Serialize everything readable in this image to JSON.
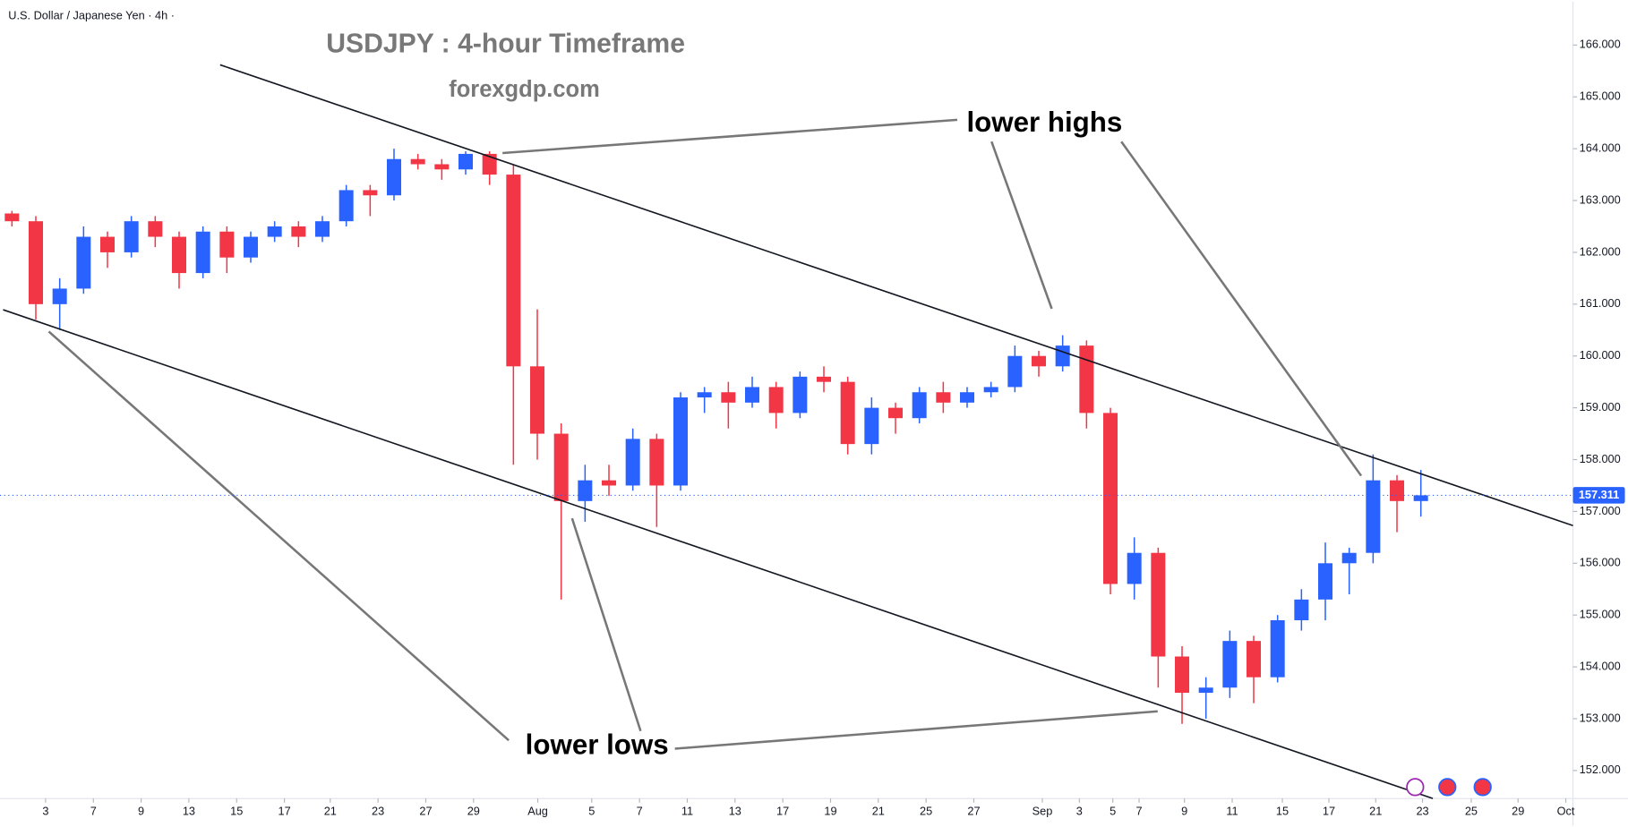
{
  "chart_data": {
    "type": "candlestick",
    "symbol": "U.S. Dollar / Japanese Yen · 4h ·",
    "title": "USDJPY : 4-hour Timeframe",
    "subtitle": "forexgdp.com",
    "annotations": [
      "lower highs",
      "lower lows"
    ],
    "up_color": "#2962ff",
    "down_color": "#f23645",
    "xlim": [
      -0.5,
      65.37
    ],
    "ylim": [
      151.46,
      166.84
    ],
    "xticks": [
      {
        "value": 1.41,
        "label": "3"
      },
      {
        "value": 3.41,
        "label": "7"
      },
      {
        "value": 5.41,
        "label": "9"
      },
      {
        "value": 7.41,
        "label": "13"
      },
      {
        "value": 9.41,
        "label": "15"
      },
      {
        "value": 11.41,
        "label": "17"
      },
      {
        "value": 13.33,
        "label": "21"
      },
      {
        "value": 15.33,
        "label": "23"
      },
      {
        "value": 17.33,
        "label": "27"
      },
      {
        "value": 19.33,
        "label": "29"
      },
      {
        "value": 22.02,
        "label": "Aug"
      },
      {
        "value": 24.28,
        "label": "5"
      },
      {
        "value": 26.28,
        "label": "7"
      },
      {
        "value": 28.28,
        "label": "11"
      },
      {
        "value": 30.28,
        "label": "13"
      },
      {
        "value": 32.28,
        "label": "17"
      },
      {
        "value": 34.28,
        "label": "19"
      },
      {
        "value": 36.28,
        "label": "21"
      },
      {
        "value": 38.28,
        "label": "25"
      },
      {
        "value": 40.28,
        "label": "27"
      },
      {
        "value": 43.15,
        "label": "Sep"
      },
      {
        "value": 44.7,
        "label": "3"
      },
      {
        "value": 46.1,
        "label": "5"
      },
      {
        "value": 47.2,
        "label": "7"
      },
      {
        "value": 49.1,
        "label": "9"
      },
      {
        "value": 51.1,
        "label": "11"
      },
      {
        "value": 53.2,
        "label": "15"
      },
      {
        "value": 55.15,
        "label": "17"
      },
      {
        "value": 57.11,
        "label": "21"
      },
      {
        "value": 59.07,
        "label": "23"
      },
      {
        "value": 61.11,
        "label": "25"
      },
      {
        "value": 63.07,
        "label": "29"
      },
      {
        "value": 65.07,
        "label": "Oct"
      }
    ],
    "yticks": [
      {
        "value": 152,
        "label": "152.000"
      },
      {
        "value": 153,
        "label": "153.000"
      },
      {
        "value": 154,
        "label": "154.000"
      },
      {
        "value": 155,
        "label": "155.000"
      },
      {
        "value": 156,
        "label": "156.000"
      },
      {
        "value": 157,
        "label": "157.000"
      },
      {
        "value": 158,
        "label": "158.000"
      },
      {
        "value": 159,
        "label": "159.000"
      },
      {
        "value": 160,
        "label": "160.000"
      },
      {
        "value": 161,
        "label": "161.000"
      },
      {
        "value": 162,
        "label": "162.000"
      },
      {
        "value": 163,
        "label": "163.000"
      },
      {
        "value": 164,
        "label": "164.000"
      },
      {
        "value": 165,
        "label": "165.000"
      },
      {
        "value": 166,
        "label": "166.000"
      }
    ],
    "last_price": 157.311,
    "x": [
      0,
      1,
      2,
      3,
      4,
      5,
      6,
      7,
      8,
      9,
      10,
      11,
      12,
      13,
      14,
      15,
      16,
      17,
      18,
      19,
      20,
      21,
      22,
      23,
      24,
      25,
      26,
      27,
      28,
      29,
      30,
      31,
      32,
      33,
      34,
      35,
      36,
      37,
      38,
      39,
      40,
      41,
      42,
      43,
      44,
      45,
      46,
      47,
      48,
      49,
      50,
      51,
      52,
      53,
      54,
      55,
      56,
      57,
      58,
      59
    ],
    "open": [
      162.75,
      162.6,
      161.0,
      161.3,
      162.3,
      162.0,
      162.6,
      162.3,
      161.6,
      162.4,
      161.9,
      162.3,
      162.5,
      162.3,
      162.6,
      163.2,
      163.1,
      163.8,
      163.7,
      163.6,
      163.9,
      163.5,
      159.8,
      158.5,
      157.2,
      157.6,
      157.5,
      158.4,
      157.5,
      159.2,
      159.3,
      159.1,
      159.4,
      158.9,
      159.6,
      159.5,
      158.3,
      159.0,
      158.8,
      159.3,
      159.1,
      159.3,
      159.4,
      160.0,
      159.8,
      160.2,
      158.9,
      155.6,
      156.2,
      154.2,
      153.5,
      153.6,
      154.5,
      153.8,
      154.9,
      155.3,
      156.0,
      156.2,
      157.6,
      157.2
    ],
    "high": [
      162.8,
      162.7,
      161.5,
      162.5,
      162.4,
      162.7,
      162.7,
      162.4,
      162.5,
      162.5,
      162.4,
      162.6,
      162.6,
      162.7,
      163.3,
      163.3,
      164.0,
      163.9,
      163.8,
      163.95,
      163.95,
      163.7,
      160.9,
      158.7,
      157.9,
      157.9,
      158.6,
      158.5,
      159.3,
      159.4,
      159.5,
      159.6,
      159.5,
      159.7,
      159.8,
      159.6,
      159.2,
      159.1,
      159.4,
      159.5,
      159.4,
      159.5,
      160.2,
      160.1,
      160.4,
      160.3,
      159.0,
      156.5,
      156.3,
      154.4,
      153.8,
      154.7,
      154.6,
      155.0,
      155.5,
      156.4,
      156.3,
      158.1,
      157.7,
      157.8
    ],
    "low": [
      162.5,
      160.7,
      160.5,
      161.2,
      161.7,
      161.9,
      162.1,
      161.3,
      161.5,
      161.6,
      161.8,
      162.2,
      162.1,
      162.2,
      162.5,
      162.7,
      163.0,
      163.6,
      163.4,
      163.5,
      163.3,
      157.9,
      158.0,
      155.3,
      156.8,
      157.3,
      157.4,
      156.7,
      157.4,
      158.9,
      158.6,
      159.0,
      158.6,
      158.8,
      159.3,
      158.1,
      158.1,
      158.5,
      158.7,
      158.9,
      159.0,
      159.2,
      159.3,
      159.6,
      159.7,
      158.6,
      155.4,
      155.3,
      153.6,
      152.9,
      153.0,
      153.4,
      153.3,
      153.7,
      154.7,
      154.9,
      155.4,
      156.0,
      156.6,
      156.9
    ],
    "close": [
      162.6,
      161.0,
      161.3,
      162.3,
      162.0,
      162.6,
      162.3,
      161.6,
      162.4,
      161.9,
      162.3,
      162.5,
      162.3,
      162.6,
      163.2,
      163.1,
      163.8,
      163.7,
      163.6,
      163.9,
      163.5,
      159.8,
      158.5,
      157.2,
      157.6,
      157.5,
      158.4,
      157.5,
      159.2,
      159.3,
      159.1,
      159.4,
      158.9,
      159.6,
      159.5,
      158.3,
      159.0,
      158.8,
      159.3,
      159.1,
      159.3,
      159.4,
      160.0,
      159.8,
      160.2,
      158.9,
      155.6,
      156.2,
      154.2,
      153.5,
      153.6,
      154.5,
      153.8,
      154.9,
      155.3,
      156.0,
      156.2,
      157.6,
      157.2,
      157.311
    ]
  }
}
